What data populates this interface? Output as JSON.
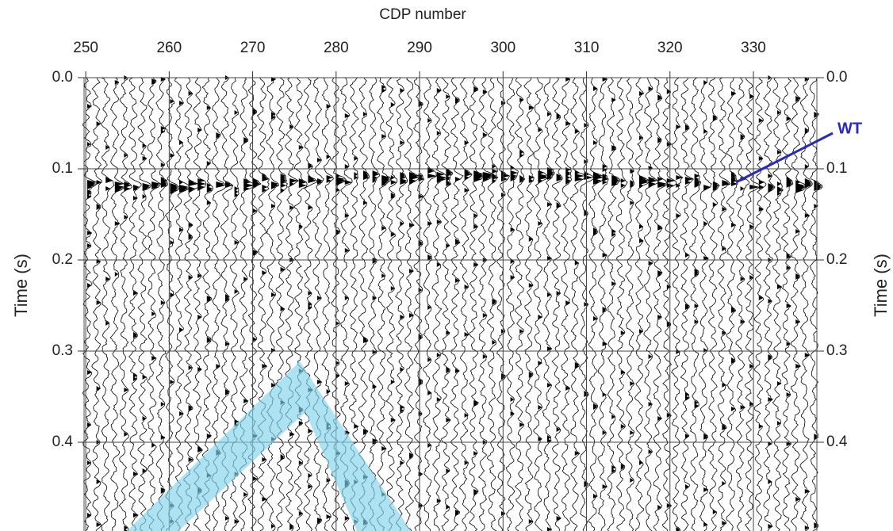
{
  "chart_data": {
    "type": "seismic",
    "x_label": "CDP number",
    "y_label": "Time (s)",
    "xlim": [
      249.8,
      337.6
    ],
    "xticks": [
      250,
      260,
      270,
      280,
      290,
      300,
      310,
      320,
      330
    ],
    "ylim": [
      0,
      0.5
    ],
    "y_inverted": true,
    "yticks": [
      {
        "value": 0,
        "label": "0.0"
      },
      0.1,
      0.2,
      0.3,
      0.4
    ],
    "grid": true,
    "annotation": {
      "text": "WT",
      "color": "#2a2ab8"
    }
  }
}
